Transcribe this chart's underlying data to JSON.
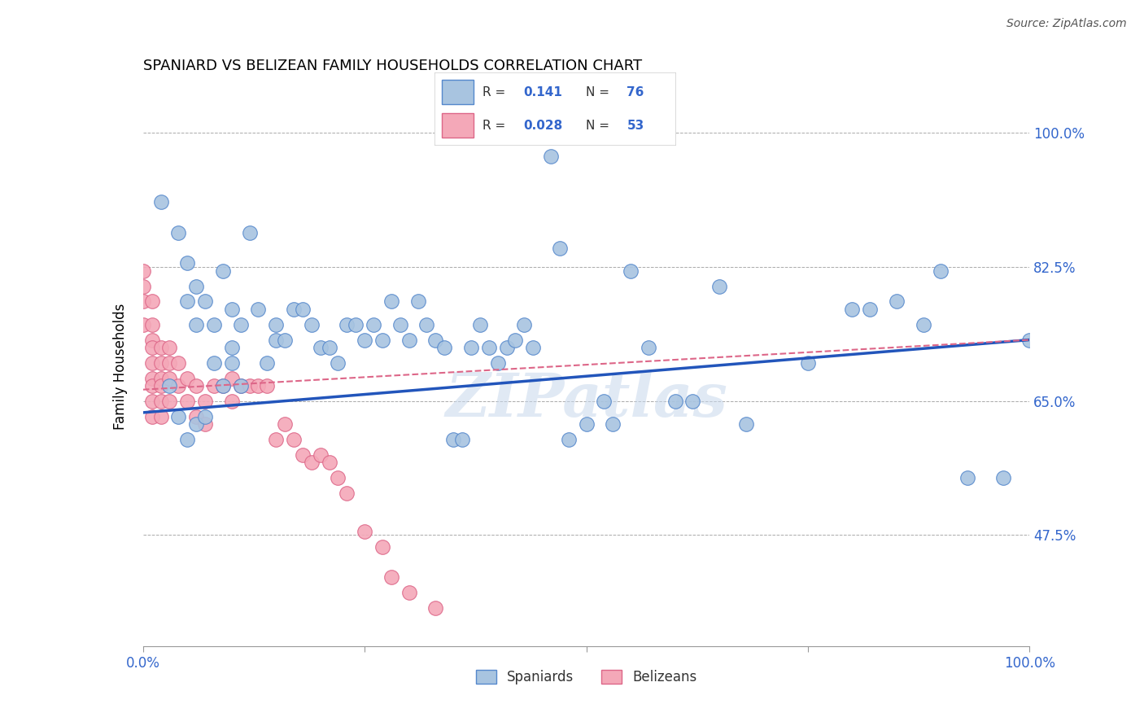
{
  "title": "SPANIARD VS BELIZEAN FAMILY HOUSEHOLDS CORRELATION CHART",
  "source_text": "Source: ZipAtlas.com",
  "ylabel": "Family Households",
  "watermark": "ZIPatlas",
  "xlim": [
    0.0,
    1.0
  ],
  "ylim": [
    0.33,
    1.06
  ],
  "xtick_positions": [
    0.0,
    0.25,
    0.5,
    0.75,
    1.0
  ],
  "xtick_labels": [
    "0.0%",
    "",
    "",
    "",
    "100.0%"
  ],
  "ytick_labels": [
    "47.5%",
    "65.0%",
    "82.5%",
    "100.0%"
  ],
  "yticks": [
    0.475,
    0.65,
    0.825,
    1.0
  ],
  "r_spaniard": "0.141",
  "n_spaniard": "76",
  "r_belizean": "0.028",
  "n_belizean": "53",
  "spaniard_color": "#a8c4e0",
  "belizean_color": "#f4a8b8",
  "spaniard_edge_color": "#5588cc",
  "belizean_edge_color": "#dd6688",
  "spaniard_line_color": "#2255bb",
  "belizean_line_color": "#dd6688",
  "title_fontsize": 13,
  "spaniard_x": [
    0.02,
    0.04,
    0.05,
    0.05,
    0.06,
    0.06,
    0.07,
    0.08,
    0.09,
    0.1,
    0.1,
    0.11,
    0.12,
    0.13,
    0.14,
    0.15,
    0.15,
    0.16,
    0.17,
    0.18,
    0.19,
    0.2,
    0.21,
    0.22,
    0.23,
    0.24,
    0.25,
    0.26,
    0.27,
    0.28,
    0.29,
    0.3,
    0.31,
    0.32,
    0.33,
    0.34,
    0.35,
    0.36,
    0.37,
    0.38,
    0.39,
    0.4,
    0.41,
    0.42,
    0.43,
    0.44,
    0.46,
    0.47,
    0.48,
    0.5,
    0.52,
    0.53,
    0.55,
    0.57,
    0.6,
    0.62,
    0.65,
    0.68,
    0.75,
    0.8,
    0.82,
    0.85,
    0.88,
    0.9,
    0.93,
    0.97,
    1.0,
    0.03,
    0.04,
    0.05,
    0.06,
    0.07,
    0.08,
    0.09,
    0.1,
    0.11
  ],
  "spaniard_y": [
    0.91,
    0.87,
    0.83,
    0.78,
    0.8,
    0.75,
    0.78,
    0.75,
    0.82,
    0.77,
    0.72,
    0.75,
    0.87,
    0.77,
    0.7,
    0.75,
    0.73,
    0.73,
    0.77,
    0.77,
    0.75,
    0.72,
    0.72,
    0.7,
    0.75,
    0.75,
    0.73,
    0.75,
    0.73,
    0.78,
    0.75,
    0.73,
    0.78,
    0.75,
    0.73,
    0.72,
    0.6,
    0.6,
    0.72,
    0.75,
    0.72,
    0.7,
    0.72,
    0.73,
    0.75,
    0.72,
    0.97,
    0.85,
    0.6,
    0.62,
    0.65,
    0.62,
    0.82,
    0.72,
    0.65,
    0.65,
    0.8,
    0.62,
    0.7,
    0.77,
    0.77,
    0.78,
    0.75,
    0.82,
    0.55,
    0.55,
    0.73,
    0.67,
    0.63,
    0.6,
    0.62,
    0.63,
    0.7,
    0.67,
    0.7,
    0.67
  ],
  "belizean_x": [
    0.0,
    0.0,
    0.0,
    0.0,
    0.01,
    0.01,
    0.01,
    0.01,
    0.01,
    0.01,
    0.01,
    0.01,
    0.01,
    0.02,
    0.02,
    0.02,
    0.02,
    0.02,
    0.02,
    0.03,
    0.03,
    0.03,
    0.03,
    0.04,
    0.04,
    0.05,
    0.05,
    0.06,
    0.06,
    0.07,
    0.07,
    0.08,
    0.09,
    0.1,
    0.1,
    0.11,
    0.12,
    0.13,
    0.14,
    0.15,
    0.16,
    0.17,
    0.18,
    0.19,
    0.2,
    0.21,
    0.22,
    0.23,
    0.25,
    0.27,
    0.28,
    0.3,
    0.33
  ],
  "belizean_y": [
    0.82,
    0.8,
    0.78,
    0.75,
    0.78,
    0.75,
    0.73,
    0.72,
    0.7,
    0.68,
    0.67,
    0.65,
    0.63,
    0.72,
    0.7,
    0.68,
    0.67,
    0.65,
    0.63,
    0.72,
    0.7,
    0.68,
    0.65,
    0.7,
    0.67,
    0.68,
    0.65,
    0.67,
    0.63,
    0.65,
    0.62,
    0.67,
    0.67,
    0.68,
    0.65,
    0.67,
    0.67,
    0.67,
    0.67,
    0.6,
    0.62,
    0.6,
    0.58,
    0.57,
    0.58,
    0.57,
    0.55,
    0.53,
    0.48,
    0.46,
    0.42,
    0.4,
    0.38
  ]
}
